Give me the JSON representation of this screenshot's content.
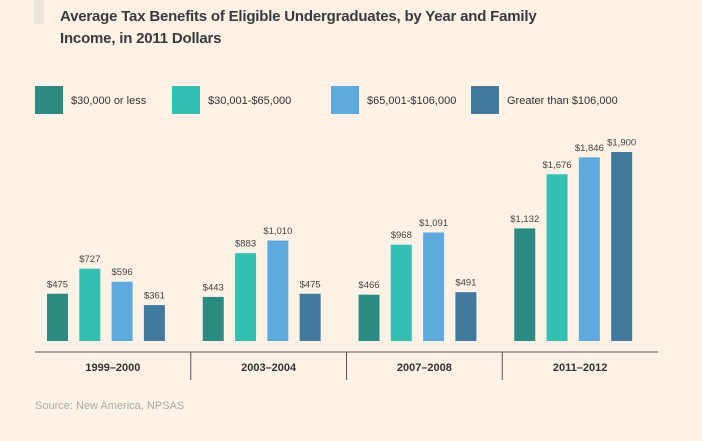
{
  "chart_data": {
    "type": "bar",
    "title": "Average Tax Benefits of Eligible Undergraduates, by Year and Family Income, in 2011 Dollars",
    "categories": [
      "1999–2000",
      "2003–2004",
      "2007–2008",
      "2011–2012"
    ],
    "series": [
      {
        "name": "$30,000 or less",
        "color": "#2b8b83",
        "values": [
          475,
          443,
          466,
          1132
        ],
        "value_labels": [
          "$475",
          "$443",
          "$466",
          "$1,132"
        ]
      },
      {
        "name": "$30,001-$65,000",
        "color": "#33c0b2",
        "values": [
          727,
          883,
          968,
          1676
        ],
        "value_labels": [
          "$727",
          "$883",
          "$968",
          "$1,676"
        ]
      },
      {
        "name": "$65,001-$106,000",
        "color": "#5ea9de",
        "values": [
          596,
          1010,
          1091,
          1846
        ],
        "value_labels": [
          "$596",
          "$1,010",
          "$1,091",
          "$1,846"
        ]
      },
      {
        "name": "Greater than $106,000",
        "color": "#41799f",
        "values": [
          361,
          475,
          491,
          1900
        ],
        "value_labels": [
          "$361",
          "$475",
          "$491",
          "$1,900"
        ]
      }
    ],
    "legend": "top",
    "source": "Source: New America, NPSAS"
  }
}
